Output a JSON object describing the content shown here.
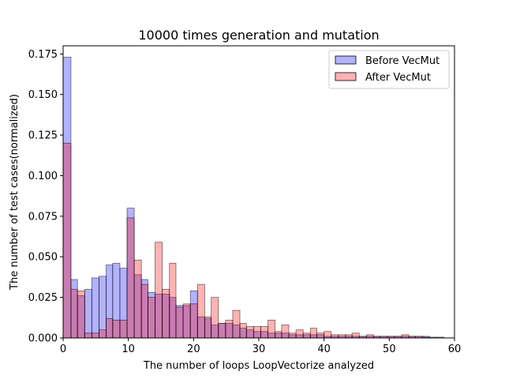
{
  "chart_data": {
    "type": "bar",
    "title": "10000 times generation and mutation",
    "xlabel": "The number of loops LoopVectorize analyzed",
    "ylabel": "The number of test cases(normalized)",
    "xlim": [
      0,
      60
    ],
    "ylim": [
      0,
      0.18
    ],
    "xticks": [
      0,
      10,
      20,
      30,
      40,
      50,
      60
    ],
    "yticks": [
      0.0,
      0.025,
      0.05,
      0.075,
      0.1,
      0.125,
      0.15,
      0.175
    ],
    "xtick_labels": [
      "0",
      "10",
      "20",
      "30",
      "40",
      "50",
      "60"
    ],
    "ytick_labels": [
      "0.000",
      "0.025",
      "0.050",
      "0.075",
      "0.100",
      "0.125",
      "0.150",
      "0.175"
    ],
    "grid": false,
    "legend_position": "top-right",
    "series": [
      {
        "name": "Before VecMut",
        "color": "#0000ff",
        "bins": [
          [
            0,
            1.2,
            0.173
          ],
          [
            1.2,
            2.2,
            0.036
          ],
          [
            2.2,
            3.3,
            0.026
          ],
          [
            3.3,
            4.4,
            0.03
          ],
          [
            4.4,
            5.5,
            0.037
          ],
          [
            5.5,
            6.6,
            0.038
          ],
          [
            6.6,
            7.6,
            0.045
          ],
          [
            7.6,
            8.7,
            0.046
          ],
          [
            8.7,
            9.8,
            0.043
          ],
          [
            9.8,
            10.9,
            0.08
          ],
          [
            10.9,
            12.0,
            0.039
          ],
          [
            12.0,
            13.0,
            0.036
          ],
          [
            13.0,
            14.1,
            0.028
          ],
          [
            14.1,
            15.2,
            0.027
          ],
          [
            15.2,
            16.3,
            0.027
          ],
          [
            16.3,
            17.3,
            0.025
          ],
          [
            17.3,
            18.4,
            0.02
          ],
          [
            18.4,
            19.5,
            0.02
          ],
          [
            19.5,
            20.6,
            0.029
          ],
          [
            20.6,
            21.7,
            0.013
          ],
          [
            21.7,
            22.7,
            0.012
          ],
          [
            22.7,
            23.8,
            0.008
          ],
          [
            23.8,
            24.9,
            0.009
          ],
          [
            24.9,
            26.0,
            0.009
          ],
          [
            26.0,
            27.1,
            0.008
          ],
          [
            27.1,
            28.1,
            0.006
          ],
          [
            28.1,
            29.2,
            0.005
          ],
          [
            29.2,
            30.3,
            0.004
          ],
          [
            30.3,
            31.4,
            0.004
          ],
          [
            31.4,
            32.5,
            0.003
          ],
          [
            32.5,
            33.5,
            0.003
          ],
          [
            33.5,
            34.6,
            0.003
          ],
          [
            34.6,
            35.7,
            0.002
          ],
          [
            35.7,
            36.8,
            0.002
          ],
          [
            36.8,
            37.9,
            0.002
          ],
          [
            37.9,
            38.9,
            0.002
          ],
          [
            38.9,
            40.0,
            0.002
          ],
          [
            40.0,
            41.1,
            0.001
          ],
          [
            41.1,
            42.2,
            0.001
          ],
          [
            42.2,
            43.3,
            0.001
          ],
          [
            43.3,
            44.3,
            0.001
          ],
          [
            44.3,
            45.4,
            0.001
          ],
          [
            45.4,
            46.5,
            0.001
          ],
          [
            46.5,
            47.6,
            0.001
          ],
          [
            47.6,
            48.6,
            0.001
          ],
          [
            48.6,
            49.7,
            0.001
          ],
          [
            49.7,
            50.8,
            0.001
          ],
          [
            50.8,
            51.9,
            0.001
          ],
          [
            51.9,
            53.0,
            0.001
          ],
          [
            53.0,
            54.0,
            0.001
          ],
          [
            54.0,
            55.1,
            0.001
          ],
          [
            55.1,
            56.2,
            0.001
          ],
          [
            56.2,
            57.3,
            0.0005
          ],
          [
            57.3,
            58.4,
            0.0005
          ]
        ]
      },
      {
        "name": "After VecMut",
        "color": "#ff0000",
        "bins": [
          [
            0,
            1.2,
            0.12
          ],
          [
            1.2,
            2.2,
            0.03
          ],
          [
            2.2,
            3.3,
            0.029
          ],
          [
            3.3,
            4.4,
            0.003
          ],
          [
            4.4,
            5.5,
            0.003
          ],
          [
            5.5,
            6.6,
            0.005
          ],
          [
            6.6,
            7.6,
            0.012
          ],
          [
            7.6,
            8.7,
            0.011
          ],
          [
            8.7,
            9.8,
            0.011
          ],
          [
            9.8,
            10.9,
            0.074
          ],
          [
            10.9,
            12.0,
            0.048
          ],
          [
            12.0,
            13.0,
            0.033
          ],
          [
            13.0,
            14.1,
            0.025
          ],
          [
            14.1,
            15.2,
            0.059
          ],
          [
            15.2,
            16.3,
            0.03
          ],
          [
            16.3,
            17.3,
            0.046
          ],
          [
            17.3,
            18.4,
            0.019
          ],
          [
            18.4,
            19.5,
            0.021
          ],
          [
            19.5,
            20.6,
            0.021
          ],
          [
            20.6,
            21.7,
            0.033
          ],
          [
            21.7,
            22.7,
            0.013
          ],
          [
            22.7,
            23.8,
            0.025
          ],
          [
            23.8,
            24.9,
            0.009
          ],
          [
            24.9,
            26.0,
            0.011
          ],
          [
            26.0,
            27.1,
            0.017
          ],
          [
            27.1,
            28.1,
            0.009
          ],
          [
            28.1,
            29.2,
            0.007
          ],
          [
            29.2,
            30.3,
            0.007
          ],
          [
            30.3,
            31.4,
            0.007
          ],
          [
            31.4,
            32.5,
            0.011
          ],
          [
            32.5,
            33.5,
            0.004
          ],
          [
            33.5,
            34.6,
            0.008
          ],
          [
            34.6,
            35.7,
            0.003
          ],
          [
            35.7,
            36.8,
            0.005
          ],
          [
            36.8,
            37.9,
            0.003
          ],
          [
            37.9,
            38.9,
            0.006
          ],
          [
            38.9,
            40.0,
            0.003
          ],
          [
            40.0,
            41.1,
            0.004
          ],
          [
            41.1,
            42.2,
            0.002
          ],
          [
            42.2,
            43.3,
            0.002
          ],
          [
            43.3,
            44.3,
            0.002
          ],
          [
            44.3,
            45.4,
            0.003
          ],
          [
            45.4,
            46.5,
            0.001
          ],
          [
            46.5,
            47.6,
            0.002
          ],
          [
            47.6,
            48.6,
            0.001
          ],
          [
            48.6,
            49.7,
            0.001
          ],
          [
            49.7,
            50.8,
            0.001
          ],
          [
            50.8,
            51.9,
            0.001
          ],
          [
            51.9,
            53.0,
            0.002
          ],
          [
            53.0,
            54.0,
            0.001
          ],
          [
            54.0,
            55.1,
            0.001
          ],
          [
            55.1,
            56.2,
            0.0005
          ]
        ]
      }
    ]
  }
}
